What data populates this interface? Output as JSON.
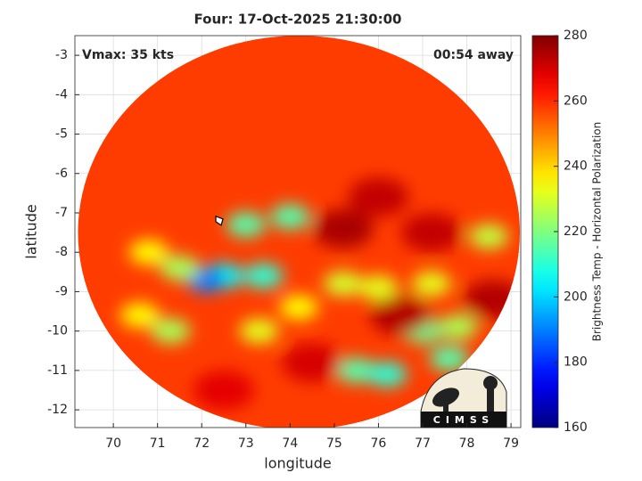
{
  "chart_data": {
    "type": "heatmap",
    "title": "Four: 17-Oct-2025 21:30:00",
    "x_label": "longitude",
    "y_label": "latitude",
    "annotations": [
      "Vmax: 35 kts",
      "00:54 away"
    ],
    "logo": "CIMSS",
    "xlim": [
      69.13,
      79.22
    ],
    "xticks": [
      70,
      71,
      72,
      73,
      74,
      75,
      76,
      77,
      78,
      79
    ],
    "ylim": [
      -12.45,
      -2.5
    ],
    "yticks": [
      -3,
      -4,
      -5,
      -6,
      -7,
      -8,
      -9,
      -10,
      -11,
      -12
    ],
    "grid": true,
    "colorbar": {
      "label": "Brightness Temp - Horizontal Polarization",
      "lim": [
        160,
        280
      ],
      "ticks": [
        160,
        180,
        200,
        220,
        240,
        260,
        280
      ],
      "colormap": "jet"
    },
    "swath": {
      "center": [
        74.2,
        -7.5
      ],
      "radius": 5.0,
      "value": 258
    },
    "storm_position": [
      72.4,
      -7.2
    ],
    "features": {
      "x": [
        72.5,
        72.1,
        73.4,
        73.0,
        74.0,
        71.5,
        70.8,
        75.2,
        76.0,
        77.2,
        77.8,
        75.5,
        76.2,
        77.6,
        71.3,
        73.3,
        74.2,
        70.6,
        78.5,
        77.0,
        75.2,
        76.0,
        77.2,
        76.5,
        78.6,
        74.5,
        72.5
      ],
      "y": [
        -8.6,
        -8.7,
        -8.6,
        -7.3,
        -7.1,
        -8.4,
        -8.0,
        -8.8,
        -8.9,
        -8.8,
        -9.9,
        -11.0,
        -11.1,
        -10.7,
        -10.0,
        -10.0,
        -9.4,
        -9.6,
        -7.6,
        -10.0,
        -7.4,
        -6.6,
        -7.5,
        -9.6,
        -9.2,
        -10.8,
        -11.5
      ],
      "values": [
        205,
        190,
        210,
        215,
        215,
        225,
        235,
        230,
        232,
        232,
        225,
        215,
        210,
        215,
        225,
        232,
        235,
        235,
        228,
        218,
        275,
        272,
        272,
        274,
        274,
        270,
        268
      ]
    }
  }
}
